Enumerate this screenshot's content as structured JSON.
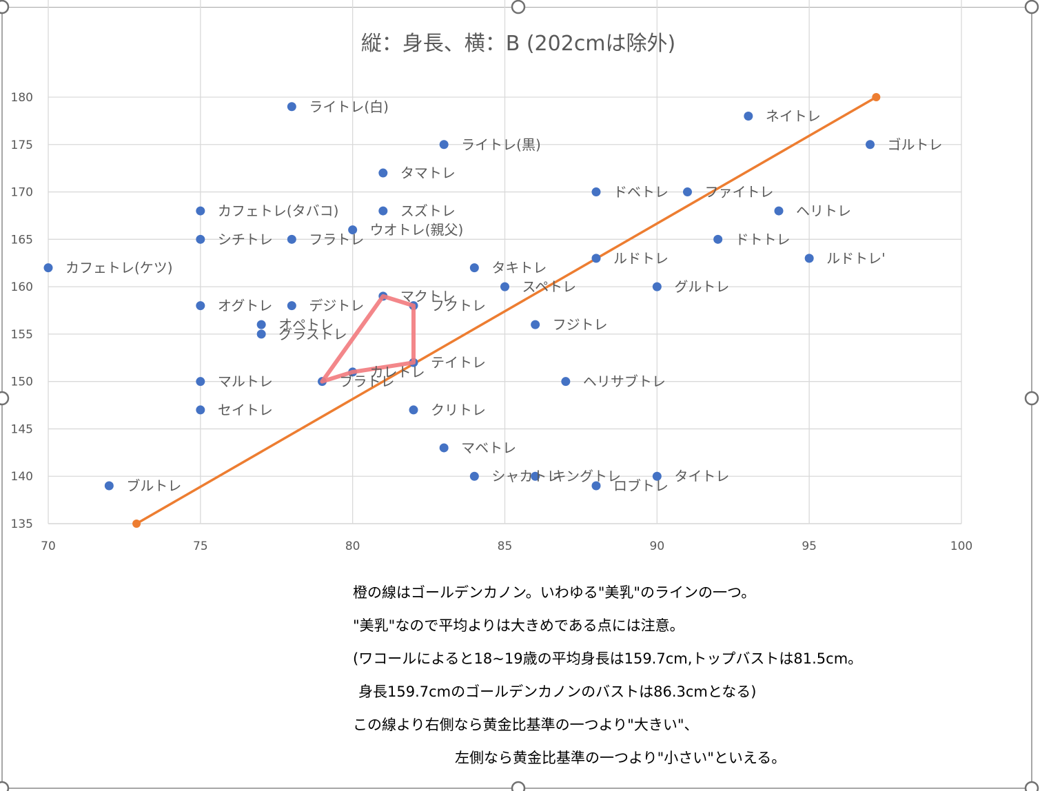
{
  "chart_data": {
    "type": "scatter",
    "title": "縦：身長、横：B (202cmは除外)",
    "xlabel": "",
    "ylabel": "",
    "xlim": [
      70,
      100
    ],
    "ylim": [
      135,
      180
    ],
    "x_ticks": [
      70,
      75,
      80,
      85,
      90,
      95,
      100
    ],
    "y_ticks": [
      135,
      140,
      145,
      150,
      155,
      160,
      165,
      170,
      175,
      180
    ],
    "grid": true,
    "legend": "none",
    "colors": {
      "points": "#4472C4",
      "golden_line": "#ED7D31",
      "highlight": "#F27A7D",
      "grid": "#D9D9D9",
      "frame": "#A6A6A6"
    },
    "points": [
      {
        "label": "ライトレ(白)",
        "x": 78,
        "y": 179
      },
      {
        "label": "ネイトレ",
        "x": 93,
        "y": 178
      },
      {
        "label": "ライトレ(黒)",
        "x": 83,
        "y": 175
      },
      {
        "label": "ゴルトレ",
        "x": 97,
        "y": 175
      },
      {
        "label": "タマトレ",
        "x": 81,
        "y": 172
      },
      {
        "label": "ドベトレ",
        "x": 88,
        "y": 170
      },
      {
        "label": "ファイトレ",
        "x": 91,
        "y": 170
      },
      {
        "label": "カフェトレ(タバコ)",
        "x": 75,
        "y": 168
      },
      {
        "label": "スズトレ",
        "x": 81,
        "y": 168
      },
      {
        "label": "ヘリトレ",
        "x": 94,
        "y": 168
      },
      {
        "label": "ウオトレ(親父)",
        "x": 80,
        "y": 166
      },
      {
        "label": "シチトレ",
        "x": 75,
        "y": 165
      },
      {
        "label": "フラトレ",
        "x": 78,
        "y": 165
      },
      {
        "label": "ドトトレ",
        "x": 92,
        "y": 165
      },
      {
        "label": "ルドトレ",
        "x": 88,
        "y": 163
      },
      {
        "label": "ルドトレ'",
        "x": 95,
        "y": 163
      },
      {
        "label": "カフェトレ(ケツ)",
        "x": 70,
        "y": 162
      },
      {
        "label": "タキトレ",
        "x": 84,
        "y": 162
      },
      {
        "label": "スペトレ",
        "x": 85,
        "y": 160
      },
      {
        "label": "グルトレ",
        "x": 90,
        "y": 160
      },
      {
        "label": "マクトレ",
        "x": 81,
        "y": 159
      },
      {
        "label": "オグトレ",
        "x": 75,
        "y": 158
      },
      {
        "label": "デジトレ",
        "x": 78,
        "y": 158
      },
      {
        "label": "フクトレ",
        "x": 82,
        "y": 158
      },
      {
        "label": "オペトレ",
        "x": 77,
        "y": 156
      },
      {
        "label": "フジトレ",
        "x": 86,
        "y": 156
      },
      {
        "label": "グラストレ",
        "x": 77,
        "y": 155
      },
      {
        "label": "テイトレ",
        "x": 82,
        "y": 152
      },
      {
        "label": "カレトレ",
        "x": 80,
        "y": 151
      },
      {
        "label": "マルトレ",
        "x": 75,
        "y": 150
      },
      {
        "label": "ブラトレ",
        "x": 79,
        "y": 150
      },
      {
        "label": "ヘリサブトレ",
        "x": 87,
        "y": 150
      },
      {
        "label": "セイトレ",
        "x": 75,
        "y": 147
      },
      {
        "label": "クリトレ",
        "x": 82,
        "y": 147
      },
      {
        "label": "マベトレ",
        "x": 83,
        "y": 143
      },
      {
        "label": "シャカトレ",
        "x": 84,
        "y": 140
      },
      {
        "label": "キングトレ",
        "x": 86,
        "y": 140
      },
      {
        "label": "タイトレ",
        "x": 90,
        "y": 140
      },
      {
        "label": "ブルトレ",
        "x": 72,
        "y": 139
      },
      {
        "label": "ロブトレ",
        "x": 88,
        "y": 139
      }
    ],
    "golden_line": [
      {
        "x": 72.9,
        "y": 135
      },
      {
        "x": 97.2,
        "y": 180
      }
    ],
    "highlight_polygon": [
      {
        "x": 79,
        "y": 150
      },
      {
        "x": 80,
        "y": 151
      },
      {
        "x": 82,
        "y": 152
      },
      {
        "x": 82,
        "y": 158
      },
      {
        "x": 81,
        "y": 159
      },
      {
        "x": 79,
        "y": 150
      }
    ]
  },
  "notes": [
    "橙の線はゴールデンカノン。いわゆる\"美乳\"のラインの一つ。",
    "\"美乳\"なので平均よりは大きめである点には注意。",
    "(ワコールによると18~19歳の平均身長は159.7cm,トップバストは81.5cm。",
    "身長159.7cmのゴールデンカノンのバストは86.3cmとなる)",
    "この線より右側なら黄金比基準の一つより\"大きい\"、",
    "左側なら黄金比基準の一つより\"小さい\"といえる。"
  ]
}
